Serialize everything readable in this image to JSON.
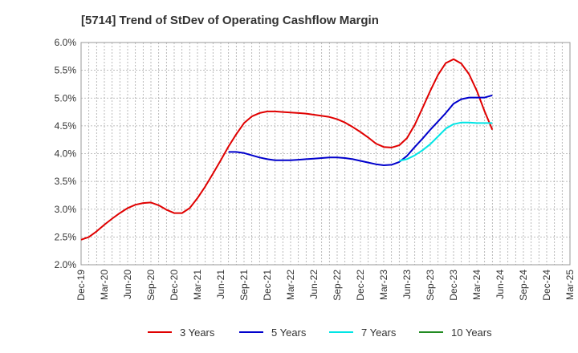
{
  "chart_data": {
    "type": "line",
    "title": "[5714]  Trend of StDev of Operating Cashflow Margin",
    "xlabel": "",
    "ylabel": "",
    "ylim": [
      2.0,
      6.0
    ],
    "yticks": [
      "2.0%",
      "2.5%",
      "3.0%",
      "3.5%",
      "4.0%",
      "4.5%",
      "5.0%",
      "5.5%",
      "6.0%"
    ],
    "ytick_values": [
      2.0,
      2.5,
      3.0,
      3.5,
      4.0,
      4.5,
      5.0,
      5.5,
      6.0
    ],
    "xticks": [
      "Dec-19",
      "Mar-20",
      "Jun-20",
      "Sep-20",
      "Dec-20",
      "Mar-21",
      "Jun-21",
      "Sep-21",
      "Dec-21",
      "Mar-22",
      "Jun-22",
      "Sep-22",
      "Dec-22",
      "Mar-23",
      "Jun-23",
      "Sep-23",
      "Dec-23",
      "Mar-24",
      "Jun-24",
      "Sep-24",
      "Dec-24",
      "Mar-25"
    ],
    "grid": true,
    "legend_position": "bottom",
    "series": [
      {
        "name": "3 Years",
        "color": "#e00000",
        "values": [
          [
            0,
            2.45
          ],
          [
            1,
            2.5
          ],
          [
            2,
            2.6
          ],
          [
            3,
            2.72
          ],
          [
            4,
            2.83
          ],
          [
            5,
            2.93
          ],
          [
            6,
            3.02
          ],
          [
            7,
            3.08
          ],
          [
            8,
            3.11
          ],
          [
            9,
            3.12
          ],
          [
            10,
            3.07
          ],
          [
            11,
            2.99
          ],
          [
            12,
            2.93
          ],
          [
            13,
            2.93
          ],
          [
            14,
            3.02
          ],
          [
            15,
            3.2
          ],
          [
            16,
            3.41
          ],
          [
            17,
            3.64
          ],
          [
            18,
            3.88
          ],
          [
            19,
            4.13
          ],
          [
            20,
            4.35
          ],
          [
            21,
            4.55
          ],
          [
            22,
            4.67
          ],
          [
            23,
            4.73
          ],
          [
            24,
            4.76
          ],
          [
            25,
            4.76
          ],
          [
            26,
            4.75
          ],
          [
            27,
            4.74
          ],
          [
            28,
            4.73
          ],
          [
            29,
            4.72
          ],
          [
            30,
            4.7
          ],
          [
            31,
            4.68
          ],
          [
            32,
            4.66
          ],
          [
            33,
            4.62
          ],
          [
            34,
            4.56
          ],
          [
            35,
            4.48
          ],
          [
            36,
            4.39
          ],
          [
            37,
            4.29
          ],
          [
            38,
            4.18
          ],
          [
            39,
            4.12
          ],
          [
            40,
            4.11
          ],
          [
            41,
            4.15
          ],
          [
            42,
            4.28
          ],
          [
            43,
            4.52
          ],
          [
            44,
            4.82
          ],
          [
            45,
            5.13
          ],
          [
            46,
            5.42
          ],
          [
            47,
            5.63
          ],
          [
            48,
            5.7
          ],
          [
            49,
            5.62
          ],
          [
            50,
            5.43
          ],
          [
            51,
            5.13
          ],
          [
            52,
            4.76
          ],
          [
            53,
            4.43
          ]
        ]
      },
      {
        "name": "5 Years",
        "color": "#0000cc",
        "values": [
          [
            19,
            4.03
          ],
          [
            20,
            4.03
          ],
          [
            21,
            4.01
          ],
          [
            22,
            3.97
          ],
          [
            23,
            3.93
          ],
          [
            24,
            3.9
          ],
          [
            25,
            3.88
          ],
          [
            26,
            3.88
          ],
          [
            27,
            3.88
          ],
          [
            28,
            3.89
          ],
          [
            29,
            3.9
          ],
          [
            30,
            3.91
          ],
          [
            31,
            3.92
          ],
          [
            32,
            3.93
          ],
          [
            33,
            3.93
          ],
          [
            34,
            3.92
          ],
          [
            35,
            3.9
          ],
          [
            36,
            3.87
          ],
          [
            37,
            3.84
          ],
          [
            38,
            3.81
          ],
          [
            39,
            3.79
          ],
          [
            40,
            3.8
          ],
          [
            41,
            3.85
          ],
          [
            42,
            3.96
          ],
          [
            43,
            4.12
          ],
          [
            44,
            4.27
          ],
          [
            45,
            4.43
          ],
          [
            46,
            4.58
          ],
          [
            47,
            4.73
          ],
          [
            48,
            4.9
          ],
          [
            49,
            4.98
          ],
          [
            50,
            5.01
          ],
          [
            51,
            5.01
          ],
          [
            52,
            5.01
          ],
          [
            53,
            5.05
          ]
        ]
      },
      {
        "name": "7 Years",
        "color": "#00e5e5",
        "values": [
          [
            41,
            3.87
          ],
          [
            42,
            3.9
          ],
          [
            43,
            3.97
          ],
          [
            44,
            4.06
          ],
          [
            45,
            4.17
          ],
          [
            46,
            4.31
          ],
          [
            47,
            4.45
          ],
          [
            48,
            4.53
          ],
          [
            49,
            4.56
          ],
          [
            50,
            4.56
          ],
          [
            51,
            4.55
          ],
          [
            52,
            4.55
          ],
          [
            53,
            4.55
          ]
        ]
      },
      {
        "name": "10 Years",
        "color": "#228b22",
        "values": []
      }
    ]
  }
}
